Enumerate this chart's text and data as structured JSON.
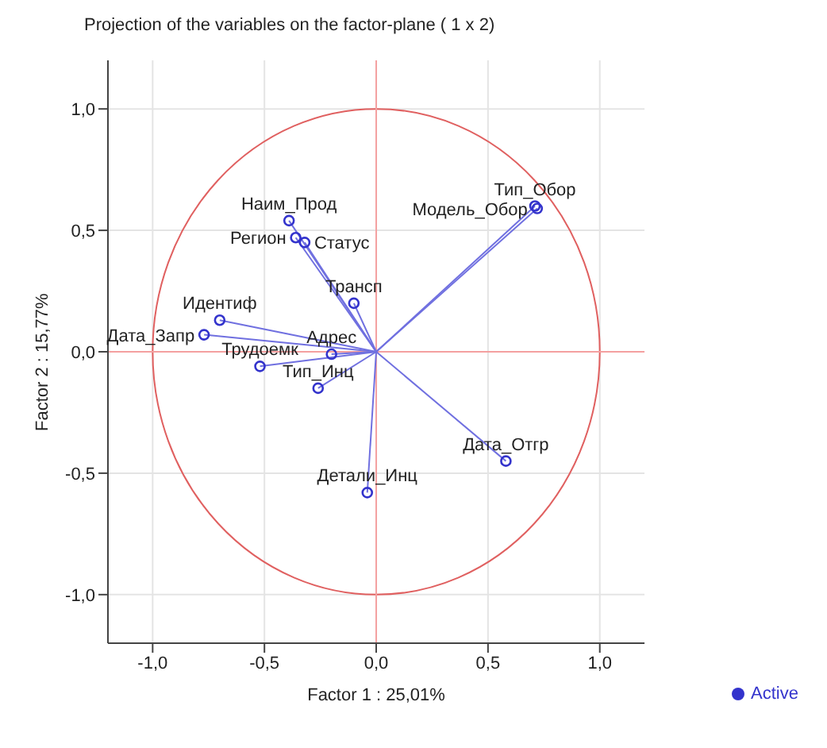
{
  "chart_data": {
    "type": "scatter",
    "title": "Projection of the variables on the factor-plane (  1 x   2)",
    "xlabel": "Factor 1 : 25,01%",
    "ylabel": "Factor 2 : 15,77%",
    "xlim": [
      -1.2,
      1.2
    ],
    "ylim": [
      -1.2,
      1.2
    ],
    "xticks": [
      {
        "value": -1,
        "label": "-1,0"
      },
      {
        "value": -0.5,
        "label": "-0,5"
      },
      {
        "value": 0,
        "label": "0,0"
      },
      {
        "value": 0.5,
        "label": "0,5"
      },
      {
        "value": 1,
        "label": "1,0"
      }
    ],
    "yticks": [
      {
        "value": -1,
        "label": "-1,0"
      },
      {
        "value": -0.5,
        "label": "-0,5"
      },
      {
        "value": 0,
        "label": "0,0"
      },
      {
        "value": 0.5,
        "label": "0,5"
      },
      {
        "value": 1,
        "label": "1,0"
      }
    ],
    "grid": true,
    "legend": "bottom right",
    "marker": "circle",
    "series": [
      {
        "name": "Active",
        "type": "scatter",
        "color": "#3333cc",
        "x": [
          0.71,
          0.72,
          0.58,
          -0.04,
          -0.26,
          -0.52,
          -0.77,
          -0.7,
          -0.2,
          -0.1,
          -0.39,
          -0.36,
          -0.32
        ],
        "values": [
          0.6,
          0.59,
          -0.45,
          -0.58,
          -0.15,
          -0.06,
          0.07,
          0.13,
          -0.01,
          0.2,
          0.54,
          0.47,
          0.45
        ]
      }
    ],
    "annotations": [
      {
        "text": "Тип_Обор",
        "x": 0.71,
        "y": 0.6
      },
      {
        "text": "Модель_Обор",
        "x": 0.72,
        "y": 0.59
      },
      {
        "text": "Дата_Отгр",
        "x": 0.58,
        "y": -0.45
      },
      {
        "text": "Детали_Инц",
        "x": -0.04,
        "y": -0.58
      },
      {
        "text": "Тип_Инц",
        "x": -0.26,
        "y": -0.15
      },
      {
        "text": "Трудоемк",
        "x": -0.52,
        "y": -0.06
      },
      {
        "text": "Дата_Запр",
        "x": -0.77,
        "y": 0.07
      },
      {
        "text": "Идентиф",
        "x": -0.7,
        "y": 0.13
      },
      {
        "text": "Адрес",
        "x": -0.2,
        "y": -0.01
      },
      {
        "text": "Трансп",
        "x": -0.1,
        "y": 0.2
      },
      {
        "text": "Наим_Прод",
        "x": -0.39,
        "y": 0.54
      },
      {
        "text": "Регион",
        "x": -0.36,
        "y": 0.47
      },
      {
        "text": "Статус",
        "x": -0.32,
        "y": 0.45
      }
    ]
  }
}
